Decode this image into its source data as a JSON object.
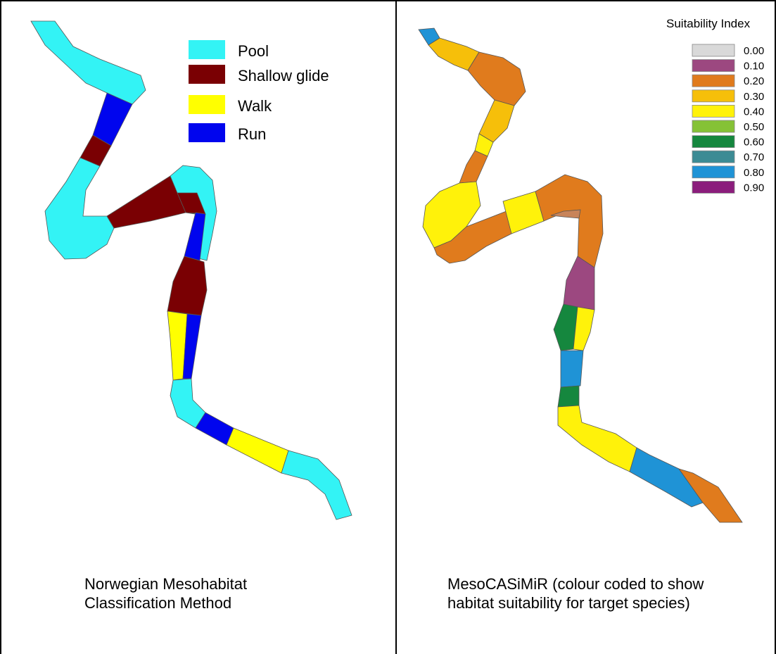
{
  "left_panel": {
    "caption": "Norwegian Mesohabitat Classification Method",
    "legend": [
      {
        "label": "Pool",
        "color": "#33f3f5"
      },
      {
        "label": "Shallow glide",
        "color": "#7a0003"
      },
      {
        "label": "Walk",
        "color": "#ffff00"
      },
      {
        "label": "Run",
        "color": "#0005ee"
      }
    ]
  },
  "right_panel": {
    "caption": "MesoCASiMiR (colour coded to show habitat suitability for target species)",
    "legend_title": "Suitability Index",
    "legend": [
      {
        "label": "0.00",
        "color": "#d9d9d9"
      },
      {
        "label": "0.10",
        "color": "#9c4880"
      },
      {
        "label": "0.20",
        "color": "#e07b1d"
      },
      {
        "label": "0.30",
        "color": "#f6bf0a"
      },
      {
        "label": "0.40",
        "color": "#fff20a"
      },
      {
        "label": "0.50",
        "color": "#85c236"
      },
      {
        "label": "0.60",
        "color": "#15873e"
      },
      {
        "label": "0.70",
        "color": "#3c8b94"
      },
      {
        "label": "0.80",
        "color": "#1f93d6"
      },
      {
        "label": "0.90",
        "color": "#8b1d7c"
      }
    ]
  }
}
